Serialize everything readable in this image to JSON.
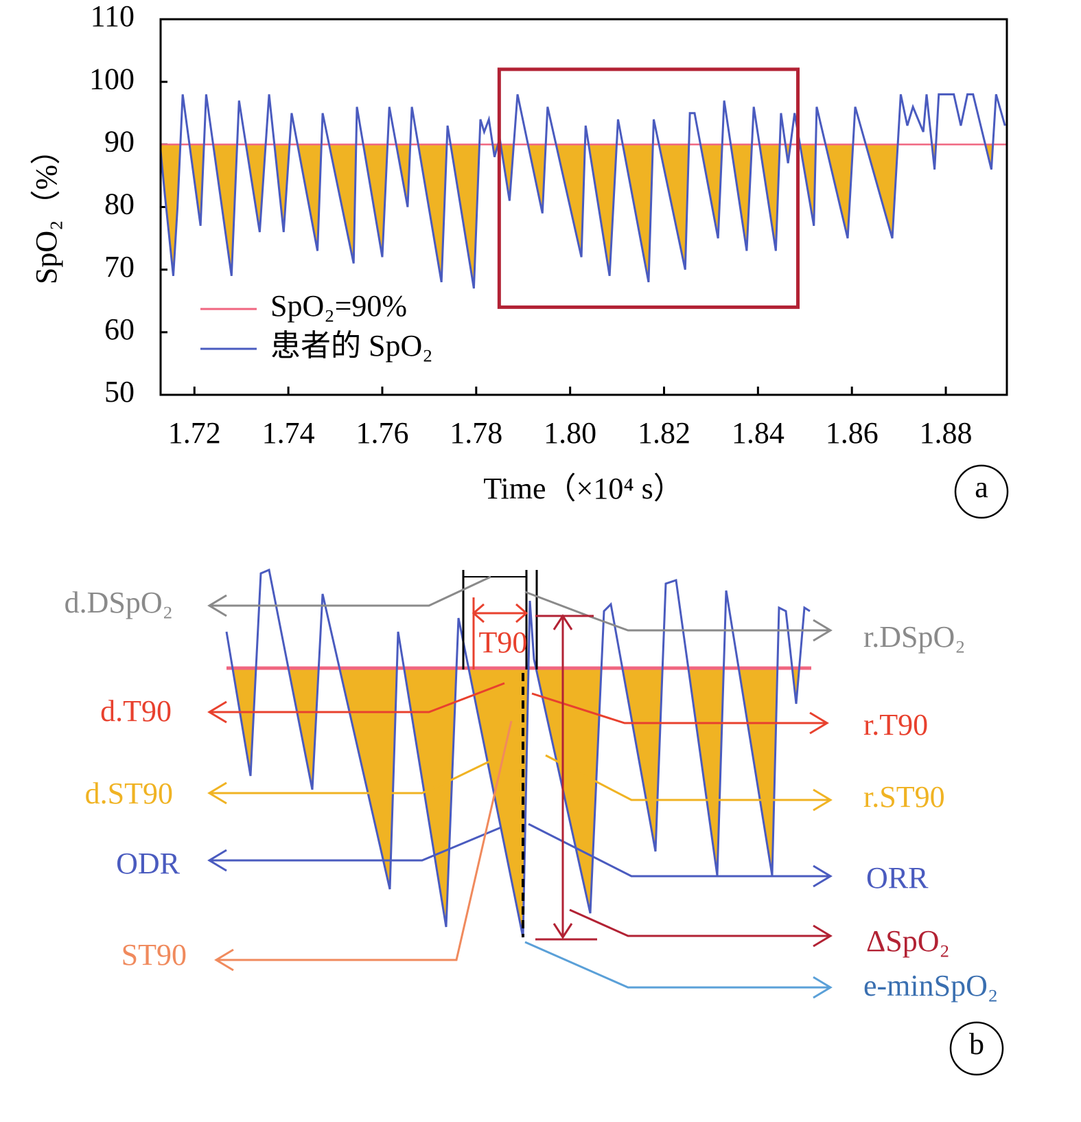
{
  "chart_data": {
    "type": "line",
    "xlabel": "Time（×10⁴ s）",
    "ylabel": "SpO₂（%）",
    "panel_label": "a",
    "xlim": [
      1.7128,
      1.893
    ],
    "ylim": [
      50,
      110
    ],
    "xticks": [
      1.72,
      1.74,
      1.76,
      1.78,
      {
        "value": 1.8,
        "label": "1.80"
      },
      1.82,
      1.84,
      1.86,
      1.88
    ],
    "yticks": [
      50,
      60,
      70,
      80,
      90,
      100,
      110
    ],
    "legend": "lower left",
    "series": [
      {
        "name": "SpO₂=90%",
        "color": "#f06680",
        "fill_color": "#f0b323",
        "x": [
          1.7128,
          1.893
        ],
        "values": [
          90,
          90
        ]
      },
      {
        "name": "患者的 SpO₂",
        "color": "#4a5bbf",
        "x": [
          1.7128,
          1.7137,
          1.7155,
          1.7164,
          1.7175,
          1.7213,
          1.7225,
          1.7279,
          1.7295,
          1.7339,
          1.7359,
          1.739,
          1.7407,
          1.7462,
          1.7473,
          1.7539,
          1.7546,
          1.76,
          1.7615,
          1.7654,
          1.7663,
          1.7726,
          1.7739,
          1.7795,
          1.7809,
          1.7817,
          1.7827,
          1.7839,
          1.785,
          1.7871,
          1.7888,
          1.7941,
          1.7952,
          1.8024,
          1.8033,
          1.8084,
          1.8102,
          1.8167,
          1.8178,
          1.8245,
          1.8255,
          1.8265,
          1.8315,
          1.8328,
          1.8376,
          1.8391,
          1.8438,
          1.8449,
          1.8464,
          1.8478,
          1.8519,
          1.8525,
          1.8591,
          1.8607,
          1.8686,
          1.8704,
          1.8718,
          1.873,
          1.8752,
          1.8759,
          1.8776,
          1.8785,
          1.8817,
          1.8832,
          1.8846,
          1.8858,
          1.8897,
          1.8907,
          1.8926
        ],
        "values": [
          89,
          82,
          69,
          80,
          98,
          77,
          98,
          69,
          97,
          76,
          98,
          76,
          95,
          73,
          95,
          71,
          96,
          72,
          96,
          80,
          96,
          68,
          93,
          67,
          94,
          92,
          94,
          88,
          91,
          81,
          98,
          79,
          96,
          72,
          93,
          69,
          94,
          68,
          94,
          70,
          95,
          95,
          75,
          97,
          73,
          96,
          73,
          95,
          87,
          95,
          77,
          96,
          75,
          96,
          75,
          98,
          93,
          96,
          92,
          98,
          86,
          98,
          98,
          93,
          98,
          98,
          86,
          98,
          93
        ]
      }
    ],
    "highlight": {
      "xlim": [
        1.7849,
        1.8485
      ],
      "ylim": [
        64,
        102
      ],
      "color": "#b22234"
    }
  },
  "panel_b": {
    "panel_label": "b",
    "t90": "T90",
    "left_labels": [
      "d.DSpO₂",
      "d.T90",
      "d.ST90",
      "ODR",
      "ST90"
    ],
    "right_labels": [
      "r.DSpO₂",
      "r.T90",
      "r.ST90",
      "ORR",
      "ΔSpO₂",
      "e-minSpO₂"
    ]
  }
}
